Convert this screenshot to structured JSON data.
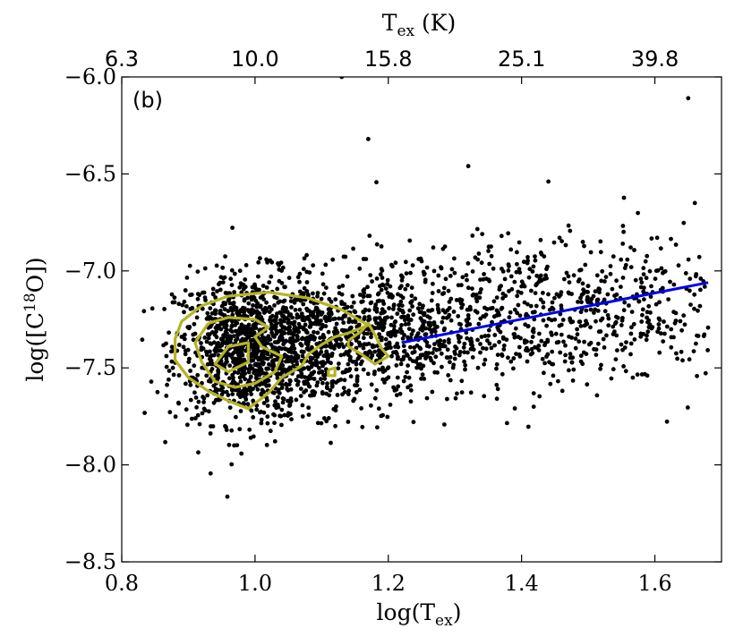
{
  "chart_data": {
    "type": "scatter",
    "panel_label": "(b)",
    "xlabel": {
      "base": "log(T",
      "sub": "ex",
      "tail": ")"
    },
    "ylabel": {
      "base": "log([C",
      "sup": "18",
      "tail": "O])"
    },
    "top_axis_label": {
      "base": "T",
      "sub": "ex",
      "tail": " (K)"
    },
    "xlim": [
      0.8,
      1.7
    ],
    "ylim": [
      -8.5,
      -6.0
    ],
    "x_ticks": [
      0.8,
      1.0,
      1.2,
      1.4,
      1.6
    ],
    "x_tick_labels": [
      "0.8",
      "1.0",
      "1.2",
      "1.4",
      "1.6"
    ],
    "y_ticks": [
      -8.5,
      -8.0,
      -7.5,
      -7.0,
      -6.5,
      -6.0
    ],
    "y_tick_labels": [
      "−8.5",
      "−8.0",
      "−7.5",
      "−7.0",
      "−6.5",
      "−6.0"
    ],
    "top_ticks": [
      0.8,
      1.0,
      1.2,
      1.4,
      1.6
    ],
    "top_tick_labels": [
      "6.3",
      "10.0",
      "15.8",
      "25.1",
      "39.8"
    ],
    "fit_line": {
      "x": [
        1.22,
        1.68
      ],
      "y": [
        -7.37,
        -7.06
      ],
      "color": "#0000ee"
    },
    "contour_color": "#b5b324",
    "point_color": "#000000",
    "contours": [
      [
        [
          0.92,
          -7.18
        ],
        [
          0.96,
          -7.13
        ],
        [
          1.02,
          -7.11
        ],
        [
          1.08,
          -7.14
        ],
        [
          1.13,
          -7.2
        ],
        [
          1.17,
          -7.28
        ],
        [
          1.14,
          -7.32
        ],
        [
          1.12,
          -7.34
        ],
        [
          1.1,
          -7.38
        ],
        [
          1.08,
          -7.43
        ],
        [
          1.07,
          -7.49
        ],
        [
          1.04,
          -7.55
        ],
        [
          1.02,
          -7.63
        ],
        [
          0.99,
          -7.71
        ],
        [
          0.96,
          -7.67
        ],
        [
          0.93,
          -7.62
        ],
        [
          0.9,
          -7.55
        ],
        [
          0.88,
          -7.46
        ],
        [
          0.88,
          -7.35
        ],
        [
          0.89,
          -7.26
        ],
        [
          0.92,
          -7.18
        ]
      ],
      [
        [
          0.93,
          -7.27
        ],
        [
          0.96,
          -7.24
        ],
        [
          1.0,
          -7.25
        ],
        [
          1.02,
          -7.29
        ],
        [
          1.0,
          -7.34
        ],
        [
          1.01,
          -7.39
        ],
        [
          1.04,
          -7.44
        ],
        [
          1.03,
          -7.52
        ],
        [
          1.0,
          -7.58
        ],
        [
          0.97,
          -7.6
        ],
        [
          0.94,
          -7.57
        ],
        [
          0.92,
          -7.47
        ],
        [
          0.91,
          -7.37
        ],
        [
          0.93,
          -7.27
        ]
      ],
      [
        [
          0.96,
          -7.39
        ],
        [
          0.99,
          -7.37
        ],
        [
          0.99,
          -7.47
        ],
        [
          0.96,
          -7.52
        ],
        [
          0.94,
          -7.48
        ],
        [
          0.96,
          -7.39
        ]
      ],
      [
        [
          1.11,
          -7.51
        ],
        [
          1.12,
          -7.5
        ],
        [
          1.12,
          -7.54
        ],
        [
          1.11,
          -7.54
        ],
        [
          1.11,
          -7.51
        ]
      ],
      [
        [
          1.14,
          -7.36
        ],
        [
          1.16,
          -7.31
        ],
        [
          1.17,
          -7.27
        ],
        [
          1.18,
          -7.33
        ],
        [
          1.19,
          -7.4
        ],
        [
          1.2,
          -7.44
        ],
        [
          1.18,
          -7.48
        ],
        [
          1.16,
          -7.43
        ],
        [
          1.14,
          -7.39
        ],
        [
          1.14,
          -7.36
        ]
      ]
    ],
    "outliers": [
      [
        1.13,
        -6.0
      ],
      [
        1.65,
        -6.11
      ],
      [
        1.17,
        -6.32
      ],
      [
        1.32,
        -6.46
      ],
      [
        1.66,
        -6.65
      ],
      [
        1.37,
        -6.82
      ],
      [
        1.25,
        -6.95
      ]
    ],
    "clusters": [
      {
        "cx": 0.99,
        "cy": -7.4,
        "sx": 0.055,
        "sy": 0.19,
        "n": 1100
      },
      {
        "cx": 1.1,
        "cy": -7.38,
        "sx": 0.055,
        "sy": 0.17,
        "n": 450
      },
      {
        "cx": 1.22,
        "cy": -7.32,
        "sx": 0.06,
        "sy": 0.18,
        "n": 380
      },
      {
        "cx": 1.4,
        "cy": -7.22,
        "sx": 0.11,
        "sy": 0.19,
        "n": 560
      },
      {
        "cx": 1.58,
        "cy": -7.14,
        "sx": 0.06,
        "sy": 0.21,
        "n": 150
      }
    ]
  }
}
